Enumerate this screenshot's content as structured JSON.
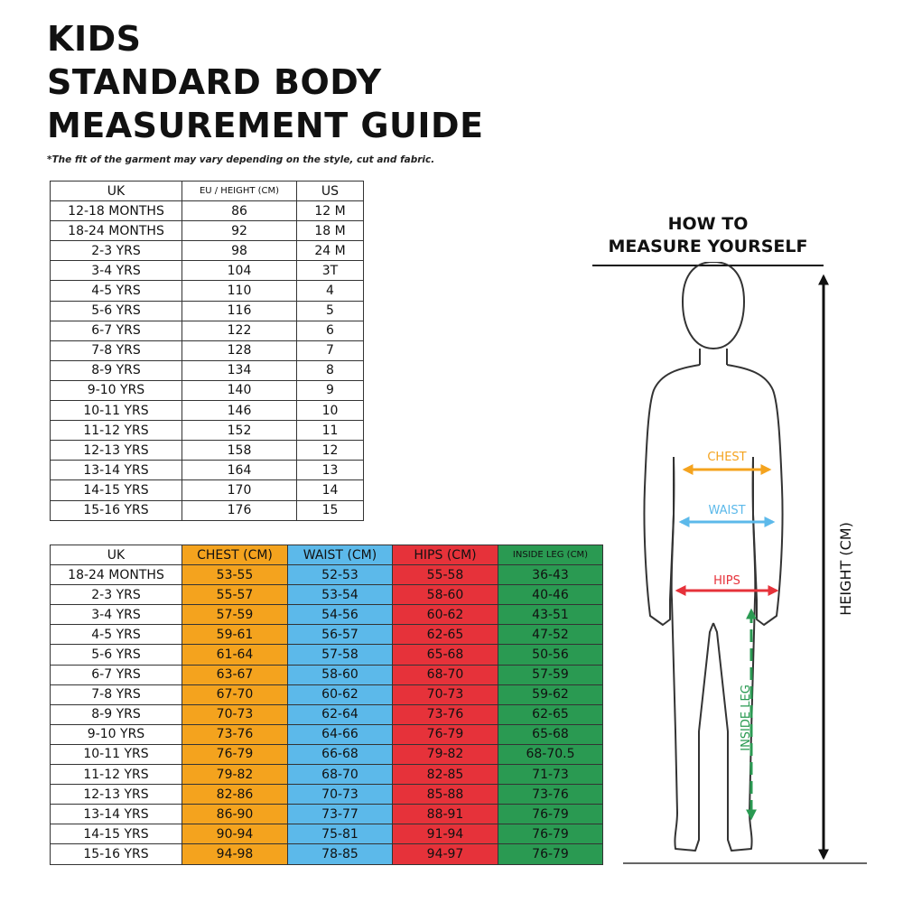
{
  "title": {
    "line1": "KIDS",
    "line2": "STANDARD BODY",
    "line3": "MEASUREMENT GUIDE"
  },
  "disclaimer": "*The fit of the garment may vary depending on the style, cut and fabric.",
  "size_table": {
    "headers": [
      "UK",
      "EU / HEIGHT (CM)",
      "US"
    ],
    "rows": [
      [
        "12-18 MONTHS",
        "86",
        "12 M"
      ],
      [
        "18-24 MONTHS",
        "92",
        "18 M"
      ],
      [
        "2-3 YRS",
        "98",
        "24 M"
      ],
      [
        "3-4 YRS",
        "104",
        "3T"
      ],
      [
        "4-5 YRS",
        "110",
        "4"
      ],
      [
        "5-6 YRS",
        "116",
        "5"
      ],
      [
        "6-7 YRS",
        "122",
        "6"
      ],
      [
        "7-8 YRS",
        "128",
        "7"
      ],
      [
        "8-9 YRS",
        "134",
        "8"
      ],
      [
        "9-10 YRS",
        "140",
        "9"
      ],
      [
        "10-11 YRS",
        "146",
        "10"
      ],
      [
        "11-12 YRS",
        "152",
        "11"
      ],
      [
        "12-13 YRS",
        "158",
        "12"
      ],
      [
        "13-14 YRS",
        "164",
        "13"
      ],
      [
        "14-15 YRS",
        "170",
        "14"
      ],
      [
        "15-16 YRS",
        "176",
        "15"
      ]
    ]
  },
  "measurement_table": {
    "headers": [
      "UK",
      "CHEST (CM)",
      "WAIST (CM)",
      "HIPS (CM)",
      "INSIDE LEG (CM)"
    ],
    "rows": [
      [
        "18-24 MONTHS",
        "53-55",
        "52-53",
        "55-58",
        "36-43"
      ],
      [
        "2-3 YRS",
        "55-57",
        "53-54",
        "58-60",
        "40-46"
      ],
      [
        "3-4 YRS",
        "57-59",
        "54-56",
        "60-62",
        "43-51"
      ],
      [
        "4-5 YRS",
        "59-61",
        "56-57",
        "62-65",
        "47-52"
      ],
      [
        "5-6 YRS",
        "61-64",
        "57-58",
        "65-68",
        "50-56"
      ],
      [
        "6-7 YRS",
        "63-67",
        "58-60",
        "68-70",
        "57-59"
      ],
      [
        "7-8 YRS",
        "67-70",
        "60-62",
        "70-73",
        "59-62"
      ],
      [
        "8-9 YRS",
        "70-73",
        "62-64",
        "73-76",
        "62-65"
      ],
      [
        "9-10 YRS",
        "73-76",
        "64-66",
        "76-79",
        "65-68"
      ],
      [
        "10-11 YRS",
        "76-79",
        "66-68",
        "79-82",
        "68-70.5"
      ],
      [
        "11-12 YRS",
        "79-82",
        "68-70",
        "82-85",
        "71-73"
      ],
      [
        "12-13 YRS",
        "82-86",
        "70-73",
        "85-88",
        "73-76"
      ],
      [
        "13-14 YRS",
        "86-90",
        "73-77",
        "88-91",
        "76-79"
      ],
      [
        "14-15 YRS",
        "90-94",
        "75-81",
        "91-94",
        "76-79"
      ],
      [
        "15-16 YRS",
        "94-98",
        "78-85",
        "94-97",
        "76-79"
      ]
    ]
  },
  "how_to": {
    "line1": "HOW TO",
    "line2": "MEASURE YOURSELF"
  },
  "figure_labels": {
    "chest": "CHEST",
    "waist": "WAIST",
    "hips": "HIPS",
    "inside_leg": "INSIDE LEG",
    "height": "HEIGHT (CM)"
  },
  "colors": {
    "chest": "#f4a31e",
    "waist": "#5cb9ea",
    "hips": "#e6323a",
    "inside_leg": "#2a9a52",
    "outline": "#333333"
  },
  "icons": [
    "child-silhouette-icon",
    "double-arrow-icon"
  ]
}
